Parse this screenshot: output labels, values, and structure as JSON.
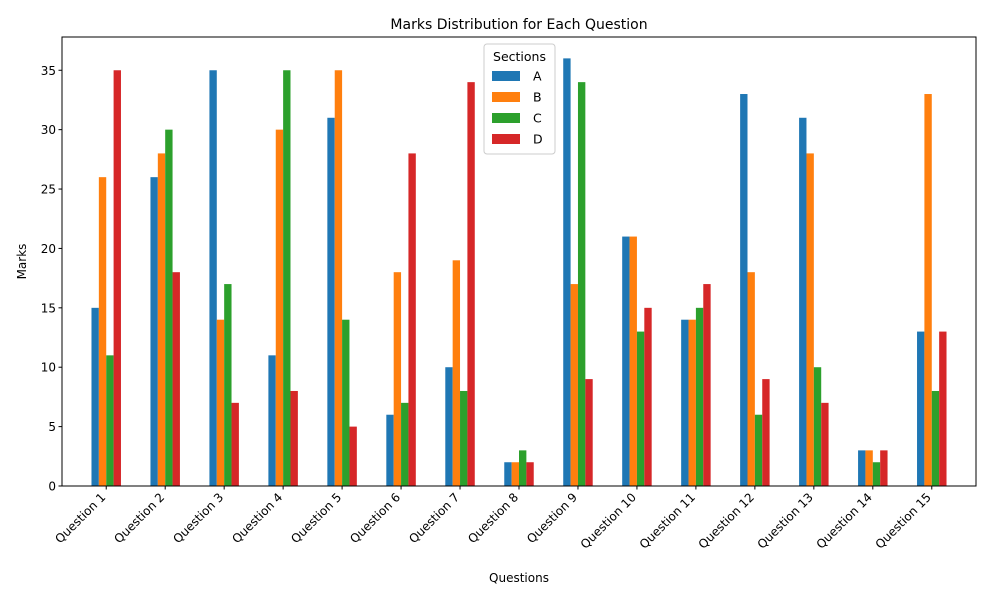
{
  "chart_data": {
    "type": "bar",
    "title": "Marks Distribution for Each Question",
    "xlabel": "Questions",
    "ylabel": "Marks",
    "ylim": [
      0,
      37.8
    ],
    "yticks": [
      0,
      5,
      10,
      15,
      20,
      25,
      30,
      35
    ],
    "grid": false,
    "legend": {
      "title": "Sections",
      "placement": "top-center"
    },
    "categories": [
      "Question 1",
      "Question 2",
      "Question 3",
      "Question 4",
      "Question 5",
      "Question 6",
      "Question 7",
      "Question 8",
      "Question 9",
      "Question 10",
      "Question 11",
      "Question 12",
      "Question 13",
      "Question 14",
      "Question 15"
    ],
    "series": [
      {
        "name": "A",
        "color": "#1f77b4",
        "values": [
          15,
          26,
          35,
          11,
          31,
          6,
          10,
          2,
          36,
          21,
          14,
          33,
          31,
          3,
          13
        ]
      },
      {
        "name": "B",
        "color": "#ff7f0e",
        "values": [
          26,
          28,
          14,
          30,
          35,
          18,
          19,
          2,
          17,
          21,
          14,
          18,
          28,
          3,
          33
        ]
      },
      {
        "name": "C",
        "color": "#2ca02c",
        "values": [
          11,
          30,
          17,
          35,
          14,
          7,
          8,
          3,
          34,
          13,
          15,
          6,
          10,
          2,
          8
        ]
      },
      {
        "name": "D",
        "color": "#d62728",
        "values": [
          35,
          18,
          7,
          8,
          5,
          28,
          34,
          2,
          9,
          15,
          17,
          9,
          7,
          3,
          13
        ]
      }
    ]
  }
}
